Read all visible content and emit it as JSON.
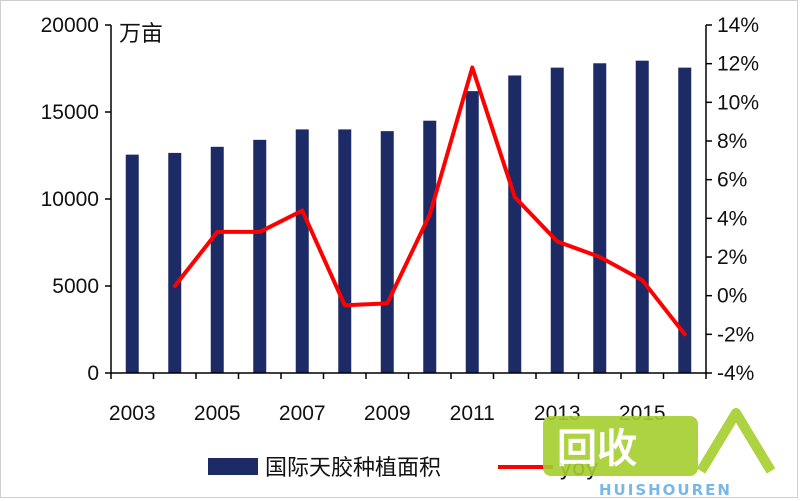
{
  "chart_data": {
    "type": "bar+line",
    "unit_label": "万亩",
    "categories": [
      "2003",
      "2004",
      "2005",
      "2006",
      "2007",
      "2008",
      "2009",
      "2010",
      "2011",
      "2012",
      "2013",
      "2014",
      "2015",
      "2016"
    ],
    "x_tick_labels": [
      "2003",
      "2005",
      "2007",
      "2009",
      "2011",
      "2013",
      "2015"
    ],
    "series": [
      {
        "name": "国际天胶种植面积",
        "type": "bar",
        "axis": "left",
        "values": [
          12550,
          12650,
          13000,
          13400,
          14000,
          14000,
          13900,
          14500,
          16200,
          17100,
          17550,
          17800,
          17950,
          17550
        ]
      },
      {
        "name": "yoy",
        "type": "line",
        "axis": "right",
        "values": [
          null,
          0.5,
          3.3,
          3.3,
          4.4,
          -0.5,
          -0.4,
          4.2,
          11.8,
          5.1,
          2.8,
          2.0,
          0.8,
          -2.0
        ]
      }
    ],
    "left_axis": {
      "ylim": [
        0,
        20000
      ],
      "ticks": [
        "0",
        "5000",
        "10000",
        "15000",
        "20000"
      ]
    },
    "right_axis": {
      "ylim": [
        -4,
        14
      ],
      "ticks": [
        "-4%",
        "-2%",
        "0%",
        "2%",
        "4%",
        "6%",
        "8%",
        "10%",
        "12%",
        "14%"
      ]
    },
    "legend_position": "bottom",
    "grid": false
  },
  "colors": {
    "bar": "#1c2a66",
    "line": "#ff0000",
    "axis": "#000000",
    "watermark_green": "#a6cf2e",
    "watermark_blue": "#6ab0e4"
  },
  "watermark": {
    "logo_text": "回收",
    "brand_text": "HUISHOUREN"
  }
}
